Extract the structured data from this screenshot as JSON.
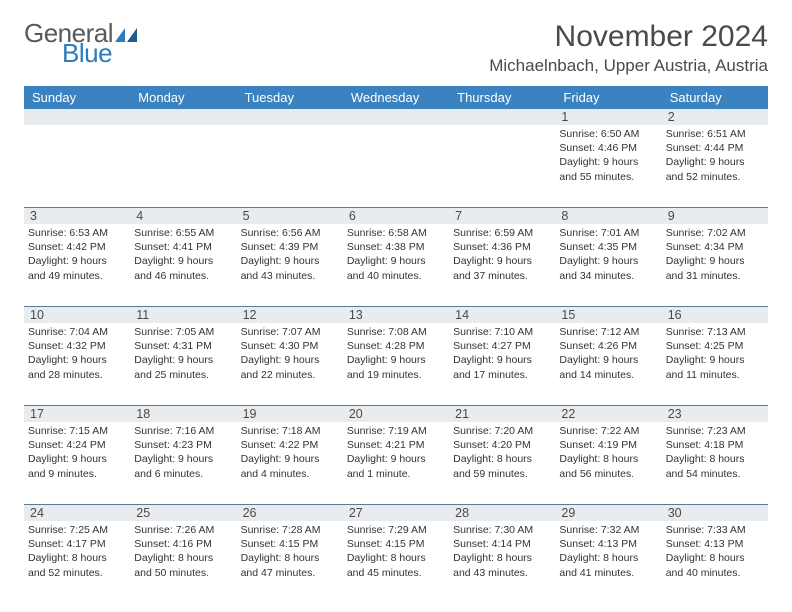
{
  "logo": {
    "text1": "General",
    "text2": "Blue"
  },
  "title": "November 2024",
  "location": "Michaelnbach, Upper Austria, Austria",
  "colors": {
    "header_bg": "#3b83c0",
    "header_text": "#ffffff",
    "daynum_bg": "#e9ecef",
    "border": "#5a7a9a",
    "text": "#333333",
    "title_text": "#4a4a4a",
    "logo_gray": "#5a5a5a",
    "logo_blue": "#2b7bbf"
  },
  "daynames": [
    "Sunday",
    "Monday",
    "Tuesday",
    "Wednesday",
    "Thursday",
    "Friday",
    "Saturday"
  ],
  "weeks": [
    [
      {
        "n": "",
        "lines": []
      },
      {
        "n": "",
        "lines": []
      },
      {
        "n": "",
        "lines": []
      },
      {
        "n": "",
        "lines": []
      },
      {
        "n": "",
        "lines": []
      },
      {
        "n": "1",
        "lines": [
          "Sunrise: 6:50 AM",
          "Sunset: 4:46 PM",
          "Daylight: 9 hours",
          "and 55 minutes."
        ]
      },
      {
        "n": "2",
        "lines": [
          "Sunrise: 6:51 AM",
          "Sunset: 4:44 PM",
          "Daylight: 9 hours",
          "and 52 minutes."
        ]
      }
    ],
    [
      {
        "n": "3",
        "lines": [
          "Sunrise: 6:53 AM",
          "Sunset: 4:42 PM",
          "Daylight: 9 hours",
          "and 49 minutes."
        ]
      },
      {
        "n": "4",
        "lines": [
          "Sunrise: 6:55 AM",
          "Sunset: 4:41 PM",
          "Daylight: 9 hours",
          "and 46 minutes."
        ]
      },
      {
        "n": "5",
        "lines": [
          "Sunrise: 6:56 AM",
          "Sunset: 4:39 PM",
          "Daylight: 9 hours",
          "and 43 minutes."
        ]
      },
      {
        "n": "6",
        "lines": [
          "Sunrise: 6:58 AM",
          "Sunset: 4:38 PM",
          "Daylight: 9 hours",
          "and 40 minutes."
        ]
      },
      {
        "n": "7",
        "lines": [
          "Sunrise: 6:59 AM",
          "Sunset: 4:36 PM",
          "Daylight: 9 hours",
          "and 37 minutes."
        ]
      },
      {
        "n": "8",
        "lines": [
          "Sunrise: 7:01 AM",
          "Sunset: 4:35 PM",
          "Daylight: 9 hours",
          "and 34 minutes."
        ]
      },
      {
        "n": "9",
        "lines": [
          "Sunrise: 7:02 AM",
          "Sunset: 4:34 PM",
          "Daylight: 9 hours",
          "and 31 minutes."
        ]
      }
    ],
    [
      {
        "n": "10",
        "lines": [
          "Sunrise: 7:04 AM",
          "Sunset: 4:32 PM",
          "Daylight: 9 hours",
          "and 28 minutes."
        ]
      },
      {
        "n": "11",
        "lines": [
          "Sunrise: 7:05 AM",
          "Sunset: 4:31 PM",
          "Daylight: 9 hours",
          "and 25 minutes."
        ]
      },
      {
        "n": "12",
        "lines": [
          "Sunrise: 7:07 AM",
          "Sunset: 4:30 PM",
          "Daylight: 9 hours",
          "and 22 minutes."
        ]
      },
      {
        "n": "13",
        "lines": [
          "Sunrise: 7:08 AM",
          "Sunset: 4:28 PM",
          "Daylight: 9 hours",
          "and 19 minutes."
        ]
      },
      {
        "n": "14",
        "lines": [
          "Sunrise: 7:10 AM",
          "Sunset: 4:27 PM",
          "Daylight: 9 hours",
          "and 17 minutes."
        ]
      },
      {
        "n": "15",
        "lines": [
          "Sunrise: 7:12 AM",
          "Sunset: 4:26 PM",
          "Daylight: 9 hours",
          "and 14 minutes."
        ]
      },
      {
        "n": "16",
        "lines": [
          "Sunrise: 7:13 AM",
          "Sunset: 4:25 PM",
          "Daylight: 9 hours",
          "and 11 minutes."
        ]
      }
    ],
    [
      {
        "n": "17",
        "lines": [
          "Sunrise: 7:15 AM",
          "Sunset: 4:24 PM",
          "Daylight: 9 hours",
          "and 9 minutes."
        ]
      },
      {
        "n": "18",
        "lines": [
          "Sunrise: 7:16 AM",
          "Sunset: 4:23 PM",
          "Daylight: 9 hours",
          "and 6 minutes."
        ]
      },
      {
        "n": "19",
        "lines": [
          "Sunrise: 7:18 AM",
          "Sunset: 4:22 PM",
          "Daylight: 9 hours",
          "and 4 minutes."
        ]
      },
      {
        "n": "20",
        "lines": [
          "Sunrise: 7:19 AM",
          "Sunset: 4:21 PM",
          "Daylight: 9 hours",
          "and 1 minute."
        ]
      },
      {
        "n": "21",
        "lines": [
          "Sunrise: 7:20 AM",
          "Sunset: 4:20 PM",
          "Daylight: 8 hours",
          "and 59 minutes."
        ]
      },
      {
        "n": "22",
        "lines": [
          "Sunrise: 7:22 AM",
          "Sunset: 4:19 PM",
          "Daylight: 8 hours",
          "and 56 minutes."
        ]
      },
      {
        "n": "23",
        "lines": [
          "Sunrise: 7:23 AM",
          "Sunset: 4:18 PM",
          "Daylight: 8 hours",
          "and 54 minutes."
        ]
      }
    ],
    [
      {
        "n": "24",
        "lines": [
          "Sunrise: 7:25 AM",
          "Sunset: 4:17 PM",
          "Daylight: 8 hours",
          "and 52 minutes."
        ]
      },
      {
        "n": "25",
        "lines": [
          "Sunrise: 7:26 AM",
          "Sunset: 4:16 PM",
          "Daylight: 8 hours",
          "and 50 minutes."
        ]
      },
      {
        "n": "26",
        "lines": [
          "Sunrise: 7:28 AM",
          "Sunset: 4:15 PM",
          "Daylight: 8 hours",
          "and 47 minutes."
        ]
      },
      {
        "n": "27",
        "lines": [
          "Sunrise: 7:29 AM",
          "Sunset: 4:15 PM",
          "Daylight: 8 hours",
          "and 45 minutes."
        ]
      },
      {
        "n": "28",
        "lines": [
          "Sunrise: 7:30 AM",
          "Sunset: 4:14 PM",
          "Daylight: 8 hours",
          "and 43 minutes."
        ]
      },
      {
        "n": "29",
        "lines": [
          "Sunrise: 7:32 AM",
          "Sunset: 4:13 PM",
          "Daylight: 8 hours",
          "and 41 minutes."
        ]
      },
      {
        "n": "30",
        "lines": [
          "Sunrise: 7:33 AM",
          "Sunset: 4:13 PM",
          "Daylight: 8 hours",
          "and 40 minutes."
        ]
      }
    ]
  ]
}
